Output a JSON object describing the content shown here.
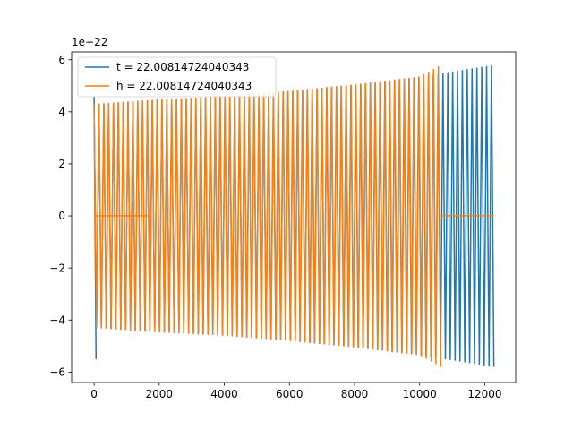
{
  "chart_data": {
    "type": "line",
    "title": "",
    "xlabel": "",
    "ylabel": "",
    "offset_label": "1e−22",
    "xlim": [
      -690,
      12950
    ],
    "ylim": [
      -6.4,
      6.3
    ],
    "x_ticks": [
      {
        "value": 0,
        "label": "0"
      },
      {
        "value": 2000,
        "label": "2000"
      },
      {
        "value": 4000,
        "label": "4000"
      },
      {
        "value": 6000,
        "label": "6000"
      },
      {
        "value": 8000,
        "label": "8000"
      },
      {
        "value": 10000,
        "label": "10000"
      },
      {
        "value": 12000,
        "label": "12000"
      }
    ],
    "y_ticks": [
      {
        "value": 6,
        "label": "6"
      },
      {
        "value": 4,
        "label": "4"
      },
      {
        "value": 2,
        "label": "2"
      },
      {
        "value": 0,
        "label": "0"
      },
      {
        "value": -2,
        "label": "−2"
      },
      {
        "value": -4,
        "label": "−4"
      },
      {
        "value": -6,
        "label": "−6"
      }
    ],
    "legend_position": "top-left",
    "grid": false,
    "series": [
      {
        "name": "t = 22.00814724040343",
        "color": "#1f77b4",
        "x_start": 0,
        "x_end": 12280,
        "cycles": 165,
        "envelope_x": [
          0,
          1700,
          4000,
          6000,
          8000,
          10000,
          12280
        ],
        "envelope_y": [
          4.3,
          4.45,
          4.6,
          4.8,
          5.05,
          5.35,
          5.8
        ],
        "spike_x": [
          0,
          60
        ],
        "spike_y": [
          4.6,
          -5.5
        ]
      },
      {
        "name": "h = 22.00814724040343",
        "color": "#ff7f0e",
        "x_start": 0,
        "x_end": 10650,
        "cycles": 143,
        "envelope_x": [
          0,
          1700,
          4000,
          6000,
          8000,
          10000,
          10650
        ],
        "envelope_y": [
          4.3,
          4.45,
          4.6,
          4.8,
          5.05,
          5.35,
          5.8
        ],
        "flat_segments": [
          [
            50,
            1650
          ],
          [
            10650,
            12280
          ]
        ]
      }
    ]
  }
}
